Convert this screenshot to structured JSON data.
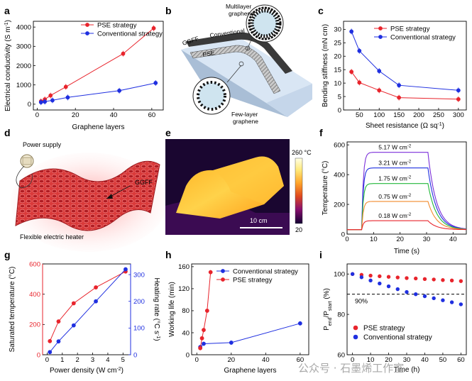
{
  "panel_labels": [
    "a",
    "b",
    "c",
    "d",
    "e",
    "f",
    "g",
    "h",
    "i"
  ],
  "watermark": "公众号 · 石墨烯工作室",
  "chart_data": [
    {
      "panel": "a",
      "type": "line",
      "xlabel": "Graphene layers",
      "ylabel": "Electrical conductivity (S m",
      "ylabel_sup": "-1",
      "ylabel_end": ")",
      "xlim": [
        -2,
        66
      ],
      "ylim": [
        -300,
        4300
      ],
      "xticks": [
        0,
        20,
        40,
        60
      ],
      "yticks": [
        0,
        1000,
        2000,
        3000,
        4000
      ],
      "series": [
        {
          "name": "PSE strategy",
          "color": "#e8242c",
          "x": [
            2,
            4,
            7,
            15,
            45,
            61
          ],
          "y": [
            150,
            250,
            450,
            900,
            2620,
            3940
          ]
        },
        {
          "name": "Conventional strategy",
          "color": "#1f2fe0",
          "x": [
            2,
            4,
            8,
            16,
            43,
            62
          ],
          "y": [
            100,
            130,
            200,
            350,
            700,
            1100
          ]
        }
      ]
    },
    {
      "panel": "c",
      "type": "line",
      "xlabel": "Sheet resistance (Ω sq",
      "xlabel_sup": "-1",
      "xlabel_end": ")",
      "ylabel": "Bending stiffness (mN cm)",
      "xlim": [
        10,
        320
      ],
      "ylim": [
        0,
        33
      ],
      "xticks": [
        50,
        100,
        150,
        200,
        250,
        300
      ],
      "yticks": [
        0,
        5,
        10,
        15,
        20,
        25,
        30
      ],
      "series": [
        {
          "name": "PSE strategy",
          "color": "#e8242c",
          "x": [
            30,
            50,
            100,
            150,
            300
          ],
          "y": [
            14.2,
            10.2,
            7.3,
            4.6,
            4.0
          ]
        },
        {
          "name": "Conventional strategy",
          "color": "#1f2fe0",
          "x": [
            30,
            50,
            100,
            150,
            300
          ],
          "y": [
            29.2,
            22.0,
            14.5,
            9.2,
            7.3
          ]
        }
      ]
    },
    {
      "panel": "f",
      "type": "line",
      "xlabel": "Time (s)",
      "ylabel": "Temperature (°C)",
      "xlim": [
        0,
        45
      ],
      "ylim": [
        0,
        620
      ],
      "xticks": [
        0,
        10,
        20,
        30,
        40
      ],
      "yticks": [
        0,
        200,
        400,
        600
      ],
      "series": [
        {
          "name": "5.17 W cm",
          "sup": "-2",
          "color": "#7b2fd9",
          "plateau": 550
        },
        {
          "name": "3.21 W cm",
          "sup": "-2",
          "color": "#1f2fe0",
          "plateau": 445
        },
        {
          "name": "1.75 W cm",
          "sup": "-2",
          "color": "#22b83a",
          "plateau": 340
        },
        {
          "name": "0.75 W cm",
          "sup": "-2",
          "color": "#f28a2c",
          "plateau": 220
        },
        {
          "name": "0.18 W cm",
          "sup": "-2",
          "color": "#e8242c",
          "plateau": 90
        }
      ],
      "on_time": 5.5,
      "off_time": 30.5,
      "base": 30
    },
    {
      "panel": "g",
      "type": "line",
      "xlabel": "Power density (W cm",
      "xlabel_sup": "-2",
      "xlabel_end": ")",
      "ylabel": "Saturated temperature (°C)",
      "ylabel2": "Heating rate (°C s",
      "ylabel2_sup": "-1",
      "ylabel2_end": ")",
      "xlim": [
        -0.3,
        5.5
      ],
      "ylim": [
        0,
        600
      ],
      "ylim2": [
        0,
        340
      ],
      "xticks": [
        0,
        1,
        2,
        3,
        4,
        5
      ],
      "yticks": [
        0,
        200,
        400,
        600
      ],
      "yticks2": [
        0,
        100,
        200,
        300
      ],
      "series": [
        {
          "name": "Saturated temperature",
          "color": "#e8242c",
          "x": [
            0.18,
            0.75,
            1.75,
            3.21,
            5.17
          ],
          "y": [
            90,
            220,
            340,
            445,
            550
          ]
        },
        {
          "name": "Heating rate",
          "color": "#1f2fe0",
          "axis": "right",
          "x": [
            0.18,
            0.75,
            1.75,
            3.21,
            5.17
          ],
          "y": [
            10,
            50,
            110,
            200,
            320
          ]
        }
      ]
    },
    {
      "panel": "h",
      "type": "line",
      "xlabel": "Graphene layers",
      "ylabel": "Working life (min)",
      "xlim": [
        -3,
        65
      ],
      "ylim": [
        0,
        165
      ],
      "xticks": [
        0,
        20,
        40,
        60
      ],
      "yticks": [
        0,
        40,
        80,
        120,
        160
      ],
      "series": [
        {
          "name": "Conventional strategy",
          "color": "#1f2fe0",
          "x": [
            2,
            4,
            20,
            60
          ],
          "y": [
            14,
            20,
            22,
            57
          ]
        },
        {
          "name": "PSE strategy",
          "color": "#e8242c",
          "x": [
            2,
            3,
            4,
            6,
            8
          ],
          "y": [
            12,
            30,
            45,
            80,
            150
          ]
        }
      ]
    },
    {
      "panel": "i",
      "type": "scatter",
      "xlabel": "Time (h)",
      "ylabel": "P",
      "ylabel_sub1": "end",
      "ylabel_mid": "/P",
      "ylabel_sub2": "start",
      "ylabel_end": " (%)",
      "xlim": [
        -3,
        63
      ],
      "ylim": [
        60,
        105
      ],
      "xticks": [
        0,
        10,
        20,
        30,
        40,
        50,
        60
      ],
      "yticks": [
        60,
        80,
        100
      ],
      "threshold": 90,
      "threshold_label": "90%",
      "series": [
        {
          "name": "PSE strategy",
          "color": "#e8242c",
          "x": [
            0,
            5,
            10,
            15,
            20,
            25,
            30,
            35,
            40,
            45,
            50,
            55,
            60
          ],
          "y": [
            100,
            99.6,
            99.2,
            98.9,
            98.6,
            98.3,
            98.0,
            97.8,
            97.5,
            97.3,
            97.0,
            96.8,
            96.5
          ]
        },
        {
          "name": "Conventional strategy",
          "color": "#1f2fe0",
          "x": [
            0,
            5,
            10,
            15,
            20,
            25,
            30,
            35,
            40,
            45,
            50,
            55,
            60
          ],
          "y": [
            100,
            98.4,
            96.8,
            95.3,
            93.9,
            92.5,
            91.1,
            90.0,
            89.0,
            88.0,
            87.0,
            86.0,
            85.0
          ]
        }
      ]
    }
  ],
  "panel_b": {
    "labels": [
      "Multilayer",
      "graphene",
      "Conventional",
      "GGFF",
      "PSE",
      "Few-layer",
      "graphene"
    ]
  },
  "panel_d": {
    "labels": [
      "Power supply",
      "GGFF",
      "Flexible electric heater"
    ]
  },
  "panel_e": {
    "colorbar_max": "260 °C",
    "colorbar_min": "20",
    "scalebar": "10 cm"
  }
}
